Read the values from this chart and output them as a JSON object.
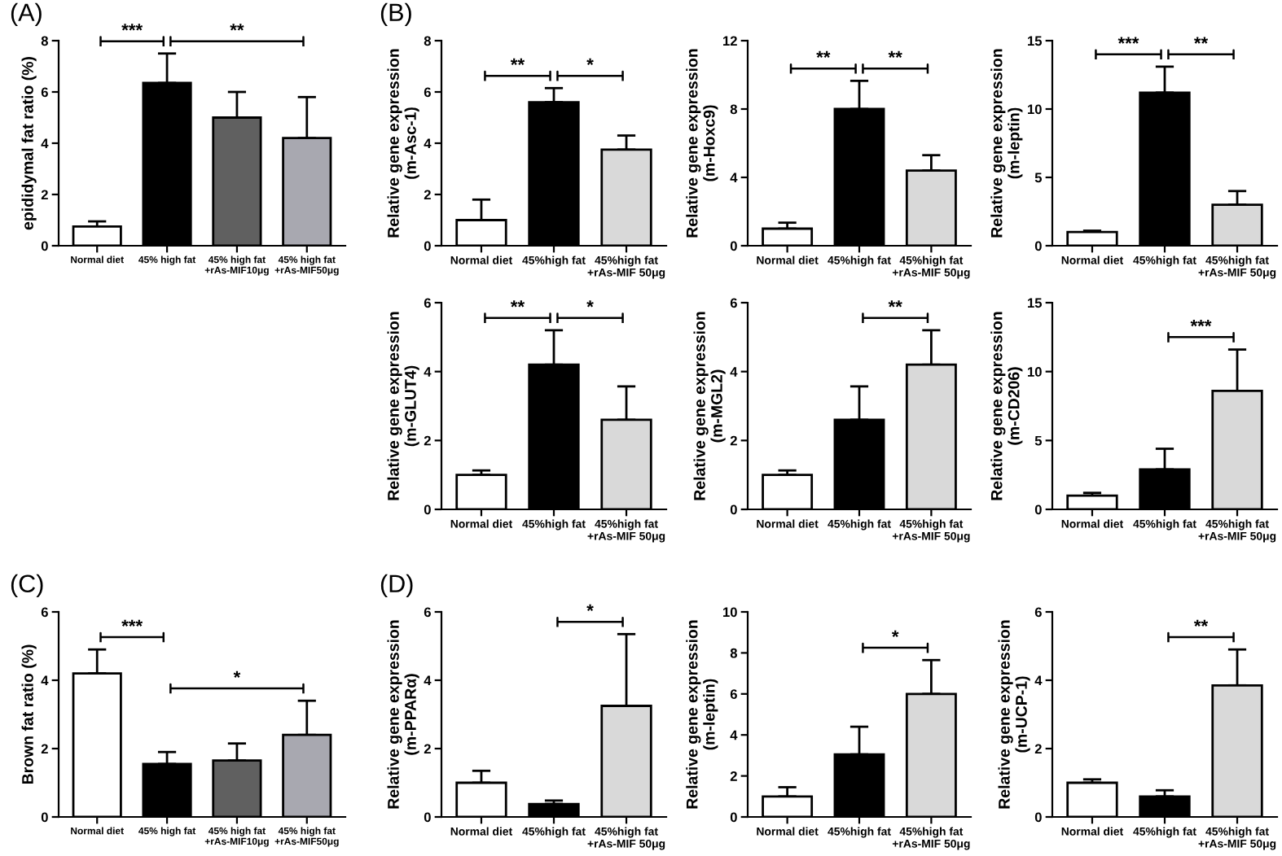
{
  "chart_data": [
    {
      "type": "bar",
      "title": "(A)",
      "ylabel": "epididymal fat ratio (%)",
      "categories": [
        "Normal diet",
        "45% high fat",
        "45% high fat\n+rAs-MIF10μg",
        "45% high fat\n+rAs-MIF50μg"
      ],
      "values": [
        0.75,
        6.35,
        5.0,
        4.2
      ],
      "errors": [
        [
          0.75,
          0.95
        ],
        [
          6.35,
          7.5
        ],
        [
          5.0,
          6.0
        ],
        [
          4.2,
          5.8
        ]
      ],
      "colors": [
        "#ffffff",
        "#000000",
        "#606060",
        "#a8a8b0"
      ],
      "ylim": [
        0,
        8
      ],
      "yticks": [
        0,
        2,
        4,
        6,
        8
      ],
      "annotations": [
        "***",
        "**"
      ]
    },
    {
      "type": "bar",
      "title": "(B)",
      "ylabel": "Relative gene expression\n(m-Asc-1)",
      "categories": [
        "Normal diet",
        "45%high fat",
        "45%high fat\n+rAs-MIF 50μg"
      ],
      "values": [
        1.0,
        5.6,
        3.75
      ],
      "errors": [
        [
          1.0,
          1.8
        ],
        [
          5.6,
          6.15
        ],
        [
          3.75,
          4.3
        ]
      ],
      "colors": [
        "#ffffff",
        "#000000",
        "#d9d9d9"
      ],
      "ylim": [
        0,
        8
      ],
      "yticks": [
        0,
        2,
        4,
        6,
        8
      ],
      "annotations": [
        "**",
        "*"
      ]
    },
    {
      "type": "bar",
      "ylabel": "Relative gene expression\n(m-Hoxc9)",
      "categories": [
        "Normal diet",
        "45%high fat",
        "45%high fat\n+rAs-MIF 50μg"
      ],
      "values": [
        1.0,
        8.0,
        4.4
      ],
      "errors": [
        [
          1.0,
          1.35
        ],
        [
          8.0,
          9.65
        ],
        [
          4.4,
          5.3
        ]
      ],
      "colors": [
        "#ffffff",
        "#000000",
        "#d9d9d9"
      ],
      "ylim": [
        0,
        12
      ],
      "yticks": [
        0,
        4,
        8,
        12
      ],
      "annotations": [
        "**",
        "**"
      ]
    },
    {
      "type": "bar",
      "ylabel": "Relative gene expression\n(m-leptin)",
      "categories": [
        "Normal diet",
        "45%high fat",
        "45%high fat\n+rAs-MIF 50μg"
      ],
      "values": [
        1.0,
        11.2,
        3.0
      ],
      "errors": [
        [
          1.0,
          1.1
        ],
        [
          11.2,
          13.1
        ],
        [
          3.0,
          4.0
        ]
      ],
      "colors": [
        "#ffffff",
        "#000000",
        "#d9d9d9"
      ],
      "ylim": [
        0,
        15
      ],
      "yticks": [
        0,
        5,
        10,
        15
      ],
      "annotations": [
        "***",
        "**"
      ]
    },
    {
      "type": "bar",
      "ylabel": "Relative gene expression\n(m-GLUT4)",
      "categories": [
        "Normal diet",
        "45%high fat",
        "45%high fat\n+rAs-MIF 50μg"
      ],
      "values": [
        1.0,
        4.2,
        2.6
      ],
      "errors": [
        [
          1.0,
          1.13
        ],
        [
          4.2,
          5.2
        ],
        [
          2.6,
          3.57
        ]
      ],
      "colors": [
        "#ffffff",
        "#000000",
        "#d9d9d9"
      ],
      "ylim": [
        0,
        6
      ],
      "yticks": [
        0,
        2,
        4,
        6
      ],
      "annotations": [
        "**",
        "*"
      ]
    },
    {
      "type": "bar",
      "ylabel": "Relative gene expression\n(m-MGL2)",
      "categories": [
        "Normal diet",
        "45%high fat",
        "45%high fat\n+rAs-MIF 50μg"
      ],
      "values": [
        1.0,
        2.6,
        4.2
      ],
      "errors": [
        [
          1.0,
          1.13
        ],
        [
          2.6,
          3.57
        ],
        [
          4.2,
          5.2
        ]
      ],
      "colors": [
        "#ffffff",
        "#000000",
        "#d9d9d9"
      ],
      "ylim": [
        0,
        6
      ],
      "yticks": [
        0,
        2,
        4,
        6
      ],
      "annotations": [
        "**"
      ]
    },
    {
      "type": "bar",
      "ylabel": "Relative gene expression\n(m-CD206)",
      "categories": [
        "Normal diet",
        "45%high fat",
        "45%high fat\n+rAs-MIF 50μg"
      ],
      "values": [
        1.0,
        2.9,
        8.6
      ],
      "errors": [
        [
          1.0,
          1.2
        ],
        [
          2.9,
          4.4
        ],
        [
          8.6,
          11.6
        ]
      ],
      "colors": [
        "#ffffff",
        "#000000",
        "#d9d9d9"
      ],
      "ylim": [
        0,
        15
      ],
      "yticks": [
        0,
        5,
        10,
        15
      ],
      "annotations": [
        "***"
      ]
    },
    {
      "type": "bar",
      "title": "(C)",
      "ylabel": "Brown fat ratio (%)",
      "categories": [
        "Normal diet",
        "45% high fat",
        "45% high fat\n+rAs-MIF10μg",
        "45% high fat\n+rAs-MIF50μg"
      ],
      "values": [
        4.2,
        1.55,
        1.65,
        2.4
      ],
      "errors": [
        [
          4.2,
          4.9
        ],
        [
          1.55,
          1.9
        ],
        [
          1.65,
          2.15
        ],
        [
          2.4,
          3.4
        ]
      ],
      "colors": [
        "#ffffff",
        "#000000",
        "#606060",
        "#a8a8b0"
      ],
      "ylim": [
        0,
        6
      ],
      "yticks": [
        0,
        2,
        4,
        6
      ],
      "annotations": [
        "***",
        "*"
      ]
    },
    {
      "type": "bar",
      "title": "(D)",
      "ylabel": "Relative gene expression\n(m-PPARα)",
      "categories": [
        "Normal diet",
        "45%high fat",
        "45%high fat\n+rAs-MIF 50μg"
      ],
      "values": [
        1.0,
        0.38,
        3.25
      ],
      "errors": [
        [
          1.0,
          1.35
        ],
        [
          0.38,
          0.48
        ],
        [
          3.25,
          5.35
        ]
      ],
      "colors": [
        "#ffffff",
        "#000000",
        "#d9d9d9"
      ],
      "ylim": [
        0,
        6
      ],
      "yticks": [
        0,
        2,
        4,
        6
      ],
      "annotations": [
        "*"
      ]
    },
    {
      "type": "bar",
      "ylabel": "Relative gene expression\n(m-leptin)",
      "categories": [
        "Normal diet",
        "45%high fat",
        "45%high fat\n+rAs-MIF 50μg"
      ],
      "values": [
        1.0,
        3.05,
        6.0
      ],
      "errors": [
        [
          1.0,
          1.45
        ],
        [
          3.05,
          4.4
        ],
        [
          6.0,
          7.65
        ]
      ],
      "colors": [
        "#ffffff",
        "#000000",
        "#d9d9d9"
      ],
      "ylim": [
        0,
        10
      ],
      "yticks": [
        0,
        2,
        4,
        6,
        8,
        10
      ],
      "annotations": [
        "*"
      ]
    },
    {
      "type": "bar",
      "ylabel": "Relative gene expression\n(m-UCP-1)",
      "categories": [
        "Normal diet",
        "45%high fat",
        "45%high fat\n+rAs-MIF 50μg"
      ],
      "values": [
        1.0,
        0.6,
        3.85
      ],
      "errors": [
        [
          1.0,
          1.1
        ],
        [
          0.6,
          0.78
        ],
        [
          3.85,
          4.9
        ]
      ],
      "colors": [
        "#ffffff",
        "#000000",
        "#d9d9d9"
      ],
      "ylim": [
        0,
        6
      ],
      "yticks": [
        0,
        2,
        4,
        6
      ],
      "annotations": [
        "**"
      ]
    }
  ]
}
